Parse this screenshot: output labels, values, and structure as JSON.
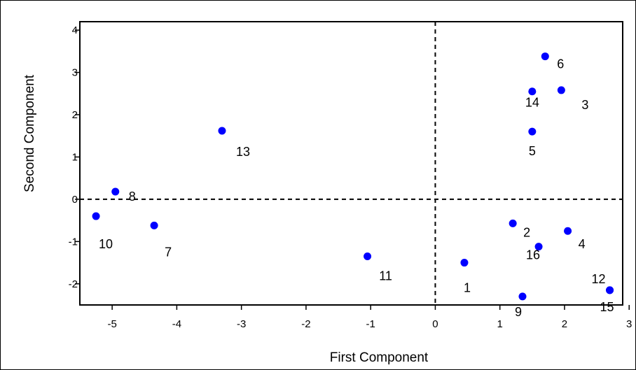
{
  "chart_data": {
    "type": "scatter",
    "xlabel": "First Component",
    "ylabel": "Second Component",
    "xlim": [
      -5.5,
      2.9
    ],
    "ylim": [
      -2.5,
      4.2
    ],
    "x_ticks": [
      -5,
      -4,
      -3,
      -2,
      -1,
      0,
      1,
      2,
      3
    ],
    "y_ticks": [
      -2,
      -1,
      0,
      1,
      2,
      3,
      4
    ],
    "x_tick_labels": [
      "-5",
      "-4",
      "-3",
      "-2",
      "-1",
      "0",
      "1",
      "2",
      "3"
    ],
    "y_tick_labels": [
      "-2",
      "-1",
      "0",
      "1",
      "2",
      "3",
      "4"
    ],
    "reference_lines": {
      "x": 0,
      "y": 0,
      "style": "dashed"
    },
    "grid": false,
    "marker_color": "#0000ff",
    "points": [
      {
        "label": "1",
        "x": 0.45,
        "y": -1.5
      },
      {
        "label": "2",
        "x": 1.2,
        "y": -0.57
      },
      {
        "label": "3",
        "x": 1.95,
        "y": 2.58
      },
      {
        "label": "4",
        "x": 2.05,
        "y": -0.75
      },
      {
        "label": "5",
        "x": 1.5,
        "y": 1.6
      },
      {
        "label": "6",
        "x": 1.7,
        "y": 3.38
      },
      {
        "label": "7",
        "x": -4.35,
        "y": -0.62
      },
      {
        "label": "8",
        "x": -4.95,
        "y": 0.18
      },
      {
        "label": "9",
        "x": 1.35,
        "y": -2.3
      },
      {
        "label": "10",
        "x": -5.25,
        "y": -0.4
      },
      {
        "label": "11",
        "x": -1.05,
        "y": -1.35
      },
      {
        "label": "12",
        "x": 2.7,
        "y": -2.15
      },
      {
        "label": "13",
        "x": -3.3,
        "y": 1.62
      },
      {
        "label": "14",
        "x": 1.5,
        "y": 2.55
      },
      {
        "label": "15",
        "x": 2.7,
        "y": -2.15
      },
      {
        "label": "16",
        "x": 1.6,
        "y": -1.12
      }
    ]
  }
}
